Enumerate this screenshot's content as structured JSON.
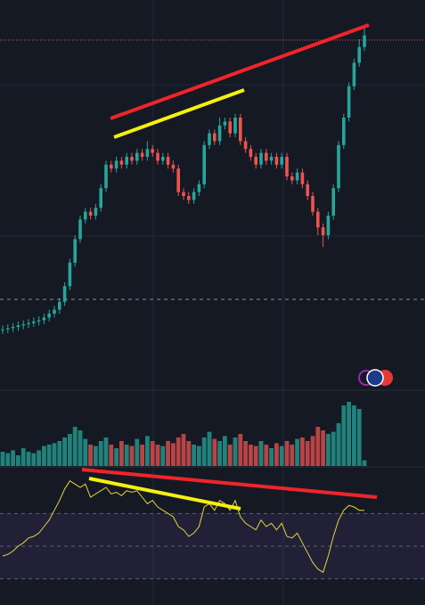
{
  "chart_data": {
    "type": "candlestick",
    "up_color": "#26a69a",
    "down_color": "#ef5350",
    "rsi_color": "#e8d33a",
    "ylim": [
      0,
      100
    ],
    "open": [
      15.8,
      16,
      16.3,
      16.6,
      17,
      17.3,
      17.6,
      18,
      18.3,
      19,
      20,
      21,
      23,
      27,
      33,
      39,
      44,
      46,
      45,
      47,
      52,
      58,
      57,
      59,
      58,
      60,
      59,
      61,
      60,
      62,
      61,
      59,
      60,
      58,
      57,
      51,
      50,
      49,
      51,
      53,
      63,
      66,
      64,
      68,
      69,
      66,
      70,
      64,
      62,
      60,
      58,
      61,
      59,
      60,
      58,
      60,
      55,
      54,
      56,
      53,
      50,
      46,
      42,
      40,
      45,
      52,
      63,
      70,
      78,
      84,
      88
    ],
    "high": [
      17,
      17.3,
      17.6,
      18,
      18.3,
      18.6,
      19,
      19.3,
      20,
      21,
      22,
      24,
      28,
      34,
      40,
      45,
      47,
      47,
      48,
      53,
      59,
      59,
      60,
      60,
      61,
      61,
      62,
      62,
      64,
      63,
      62,
      61,
      61,
      59,
      58,
      52,
      51,
      52,
      54,
      64,
      67,
      67,
      70,
      70,
      70,
      71,
      71,
      65,
      63,
      61,
      62,
      62,
      61,
      61,
      61,
      61,
      56,
      57,
      57,
      54,
      51,
      47,
      43,
      46,
      53,
      64,
      71,
      79,
      85,
      90,
      93
    ],
    "low": [
      14.8,
      15,
      15.3,
      15.6,
      16,
      16.3,
      16.6,
      17,
      17.3,
      18,
      19,
      20,
      22,
      26,
      32,
      38,
      43,
      44,
      44,
      46,
      51,
      56,
      56,
      57,
      57,
      58,
      58,
      59,
      59,
      60,
      58,
      58,
      57,
      56,
      50,
      49,
      48,
      48,
      50,
      52,
      62,
      63,
      63,
      67,
      65,
      65,
      63,
      61,
      59,
      57,
      57,
      58,
      58,
      57,
      57,
      54,
      53,
      53,
      52,
      49,
      45,
      40,
      37,
      39,
      44,
      51,
      62,
      69,
      77,
      83,
      87
    ],
    "close": [
      16,
      16.3,
      16.6,
      17,
      17.3,
      17.6,
      18,
      18.3,
      19,
      20,
      21,
      23,
      27,
      33,
      39,
      44,
      46,
      45,
      47,
      52,
      58,
      57,
      59,
      58,
      60,
      59,
      61,
      60,
      62,
      61,
      59,
      60,
      58,
      57,
      51,
      50,
      49,
      51,
      53,
      63,
      66,
      64,
      68,
      69,
      66,
      70,
      64,
      62,
      60,
      58,
      61,
      59,
      60,
      58,
      60,
      55,
      54,
      56,
      53,
      50,
      46,
      42,
      40,
      45,
      52,
      63,
      70,
      78,
      84,
      88,
      91
    ],
    "volume_ylim": [
      0,
      100
    ],
    "volume": [
      20,
      18,
      22,
      15,
      25,
      20,
      18,
      22,
      28,
      30,
      32,
      35,
      40,
      45,
      55,
      50,
      38,
      30,
      28,
      35,
      40,
      30,
      25,
      35,
      30,
      28,
      38,
      30,
      42,
      35,
      30,
      28,
      35,
      32,
      40,
      45,
      35,
      30,
      28,
      40,
      48,
      38,
      35,
      42,
      30,
      40,
      45,
      35,
      30,
      28,
      35,
      30,
      25,
      32,
      28,
      35,
      30,
      38,
      40,
      35,
      42,
      55,
      50,
      45,
      48,
      60,
      85,
      90,
      85,
      80,
      8
    ],
    "rsi_ylim": [
      14,
      98
    ],
    "rsi_levels": [
      70,
      50,
      30
    ],
    "rsi": [
      44,
      45,
      47,
      50,
      52,
      55,
      56,
      58,
      62,
      66,
      72,
      78,
      85,
      90,
      88,
      86,
      88,
      80,
      82,
      84,
      86,
      82,
      83,
      81,
      84,
      83,
      84,
      80,
      76,
      78,
      74,
      72,
      70,
      68,
      62,
      60,
      56,
      58,
      62,
      74,
      76,
      72,
      78,
      76,
      72,
      78,
      68,
      64,
      62,
      60,
      66,
      62,
      64,
      60,
      64,
      56,
      55,
      58,
      52,
      46,
      40,
      36,
      34,
      44,
      56,
      66,
      72,
      75,
      74,
      72,
      72
    ]
  }
}
